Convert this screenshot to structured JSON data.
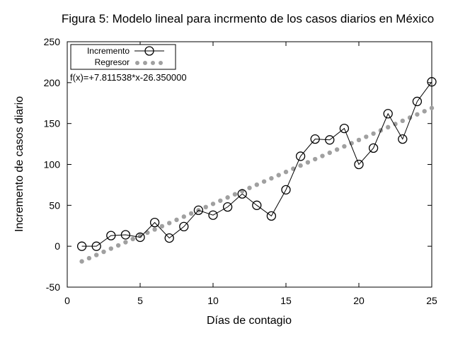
{
  "chart_data": {
    "type": "line",
    "title": "Figura 5: Modelo lineal para incrmento de los casos diarios en México",
    "xlabel": "Días de contagio",
    "ylabel": "Incremento de casos diario",
    "xlim": [
      0,
      25
    ],
    "ylim": [
      -50,
      250
    ],
    "xticks": [
      0,
      5,
      10,
      15,
      20,
      25
    ],
    "yticks": [
      -50,
      0,
      50,
      100,
      150,
      200,
      250
    ],
    "grid": false,
    "legend_position": "top-left",
    "annotation": "f(x)=+7.811538*x-26.350000",
    "series": [
      {
        "name": "Incremento",
        "color": "#000000",
        "marker": "circle",
        "x": [
          1,
          2,
          3,
          4,
          5,
          6,
          7,
          8,
          9,
          10,
          11,
          12,
          13,
          14,
          15,
          16,
          17,
          18,
          19,
          20,
          21,
          22,
          23,
          24,
          25
        ],
        "y": [
          0,
          0,
          13,
          14,
          11,
          29,
          10,
          24,
          44,
          38,
          48,
          64,
          50,
          37,
          69,
          110,
          131,
          130,
          144,
          100,
          120,
          162,
          131,
          177,
          201
        ]
      },
      {
        "name": "Regresor",
        "color": "#a0a0a0",
        "style": "dotted",
        "slope": 7.811538,
        "intercept": -26.35,
        "x_range": [
          1,
          25
        ]
      }
    ]
  }
}
